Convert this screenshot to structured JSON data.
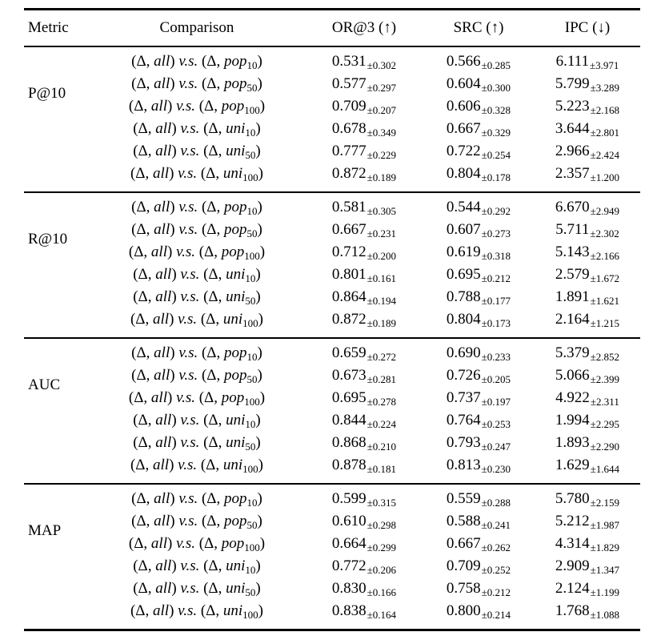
{
  "colors": {
    "background": "#ffffff",
    "text": "#000000",
    "rule": "#000000"
  },
  "table": {
    "column_headers": [
      "Metric",
      "Comparison",
      "OR@3 (↑)",
      "SRC (↑)",
      "IPC (↓)"
    ],
    "comparison_parts": {
      "open": "(",
      "delta": "Δ",
      "sep": ", ",
      "close": ")",
      "vs": "v.s.",
      "baseline": "all"
    },
    "metric_groups": [
      {
        "metric": "P@10",
        "rows": [
          {
            "family": "pop",
            "size": "10",
            "or3": "0.531",
            "or3_std": "±0.302",
            "src": "0.566",
            "src_std": "±0.285",
            "ipc": "6.111",
            "ipc_std": "±3.971"
          },
          {
            "family": "pop",
            "size": "50",
            "or3": "0.577",
            "or3_std": "±0.297",
            "src": "0.604",
            "src_std": "±0.300",
            "ipc": "5.799",
            "ipc_std": "±3.289"
          },
          {
            "family": "pop",
            "size": "100",
            "or3": "0.709",
            "or3_std": "±0.207",
            "src": "0.606",
            "src_std": "±0.328",
            "ipc": "5.223",
            "ipc_std": "±2.168"
          },
          {
            "family": "uni",
            "size": "10",
            "or3": "0.678",
            "or3_std": "±0.349",
            "src": "0.667",
            "src_std": "±0.329",
            "ipc": "3.644",
            "ipc_std": "±2.801"
          },
          {
            "family": "uni",
            "size": "50",
            "or3": "0.777",
            "or3_std": "±0.229",
            "src": "0.722",
            "src_std": "±0.254",
            "ipc": "2.966",
            "ipc_std": "±2.424"
          },
          {
            "family": "uni",
            "size": "100",
            "or3": "0.872",
            "or3_std": "±0.189",
            "src": "0.804",
            "src_std": "±0.178",
            "ipc": "2.357",
            "ipc_std": "±1.200"
          }
        ]
      },
      {
        "metric": "R@10",
        "rows": [
          {
            "family": "pop",
            "size": "10",
            "or3": "0.581",
            "or3_std": "±0.305",
            "src": "0.544",
            "src_std": "±0.292",
            "ipc": "6.670",
            "ipc_std": "±2.949"
          },
          {
            "family": "pop",
            "size": "50",
            "or3": "0.667",
            "or3_std": "±0.231",
            "src": "0.607",
            "src_std": "±0.273",
            "ipc": "5.711",
            "ipc_std": "±2.302"
          },
          {
            "family": "pop",
            "size": "100",
            "or3": "0.712",
            "or3_std": "±0.200",
            "src": "0.619",
            "src_std": "±0.318",
            "ipc": "5.143",
            "ipc_std": "±2.166"
          },
          {
            "family": "uni",
            "size": "10",
            "or3": "0.801",
            "or3_std": "±0.161",
            "src": "0.695",
            "src_std": "±0.212",
            "ipc": "2.579",
            "ipc_std": "±1.672"
          },
          {
            "family": "uni",
            "size": "50",
            "or3": "0.864",
            "or3_std": "±0.194",
            "src": "0.788",
            "src_std": "±0.177",
            "ipc": "1.891",
            "ipc_std": "±1.621"
          },
          {
            "family": "uni",
            "size": "100",
            "or3": "0.872",
            "or3_std": "±0.189",
            "src": "0.804",
            "src_std": "±0.173",
            "ipc": "2.164",
            "ipc_std": "±1.215"
          }
        ]
      },
      {
        "metric": "AUC",
        "rows": [
          {
            "family": "pop",
            "size": "10",
            "or3": "0.659",
            "or3_std": "±0.272",
            "src": "0.690",
            "src_std": "±0.233",
            "ipc": "5.379",
            "ipc_std": "±2.852"
          },
          {
            "family": "pop",
            "size": "50",
            "or3": "0.673",
            "or3_std": "±0.281",
            "src": "0.726",
            "src_std": "±0.205",
            "ipc": "5.066",
            "ipc_std": "±2.399"
          },
          {
            "family": "pop",
            "size": "100",
            "or3": "0.695",
            "or3_std": "±0.278",
            "src": "0.737",
            "src_std": "±0.197",
            "ipc": "4.922",
            "ipc_std": "±2.311"
          },
          {
            "family": "uni",
            "size": "10",
            "or3": "0.844",
            "or3_std": "±0.224",
            "src": "0.764",
            "src_std": "±0.253",
            "ipc": "1.994",
            "ipc_std": "±2.295"
          },
          {
            "family": "uni",
            "size": "50",
            "or3": "0.868",
            "or3_std": "±0.210",
            "src": "0.793",
            "src_std": "±0.247",
            "ipc": "1.893",
            "ipc_std": "±2.290"
          },
          {
            "family": "uni",
            "size": "100",
            "or3": "0.878",
            "or3_std": "±0.181",
            "src": "0.813",
            "src_std": "±0.230",
            "ipc": "1.629",
            "ipc_std": "±1.644"
          }
        ]
      },
      {
        "metric": "MAP",
        "rows": [
          {
            "family": "pop",
            "size": "10",
            "or3": "0.599",
            "or3_std": "±0.315",
            "src": "0.559",
            "src_std": "±0.288",
            "ipc": "5.780",
            "ipc_std": "±2.159"
          },
          {
            "family": "pop",
            "size": "50",
            "or3": "0.610",
            "or3_std": "±0.298",
            "src": "0.588",
            "src_std": "±0.241",
            "ipc": "5.212",
            "ipc_std": "±1.987"
          },
          {
            "family": "pop",
            "size": "100",
            "or3": "0.664",
            "or3_std": "±0.299",
            "src": "0.667",
            "src_std": "±0.262",
            "ipc": "4.314",
            "ipc_std": "±1.829"
          },
          {
            "family": "uni",
            "size": "10",
            "or3": "0.772",
            "or3_std": "±0.206",
            "src": "0.709",
            "src_std": "±0.252",
            "ipc": "2.909",
            "ipc_std": "±1.347"
          },
          {
            "family": "uni",
            "size": "50",
            "or3": "0.830",
            "or3_std": "±0.166",
            "src": "0.758",
            "src_std": "±0.212",
            "ipc": "2.124",
            "ipc_std": "±1.199"
          },
          {
            "family": "uni",
            "size": "100",
            "or3": "0.838",
            "or3_std": "±0.164",
            "src": "0.800",
            "src_std": "±0.214",
            "ipc": "1.768",
            "ipc_std": "±1.088"
          }
        ]
      }
    ]
  }
}
